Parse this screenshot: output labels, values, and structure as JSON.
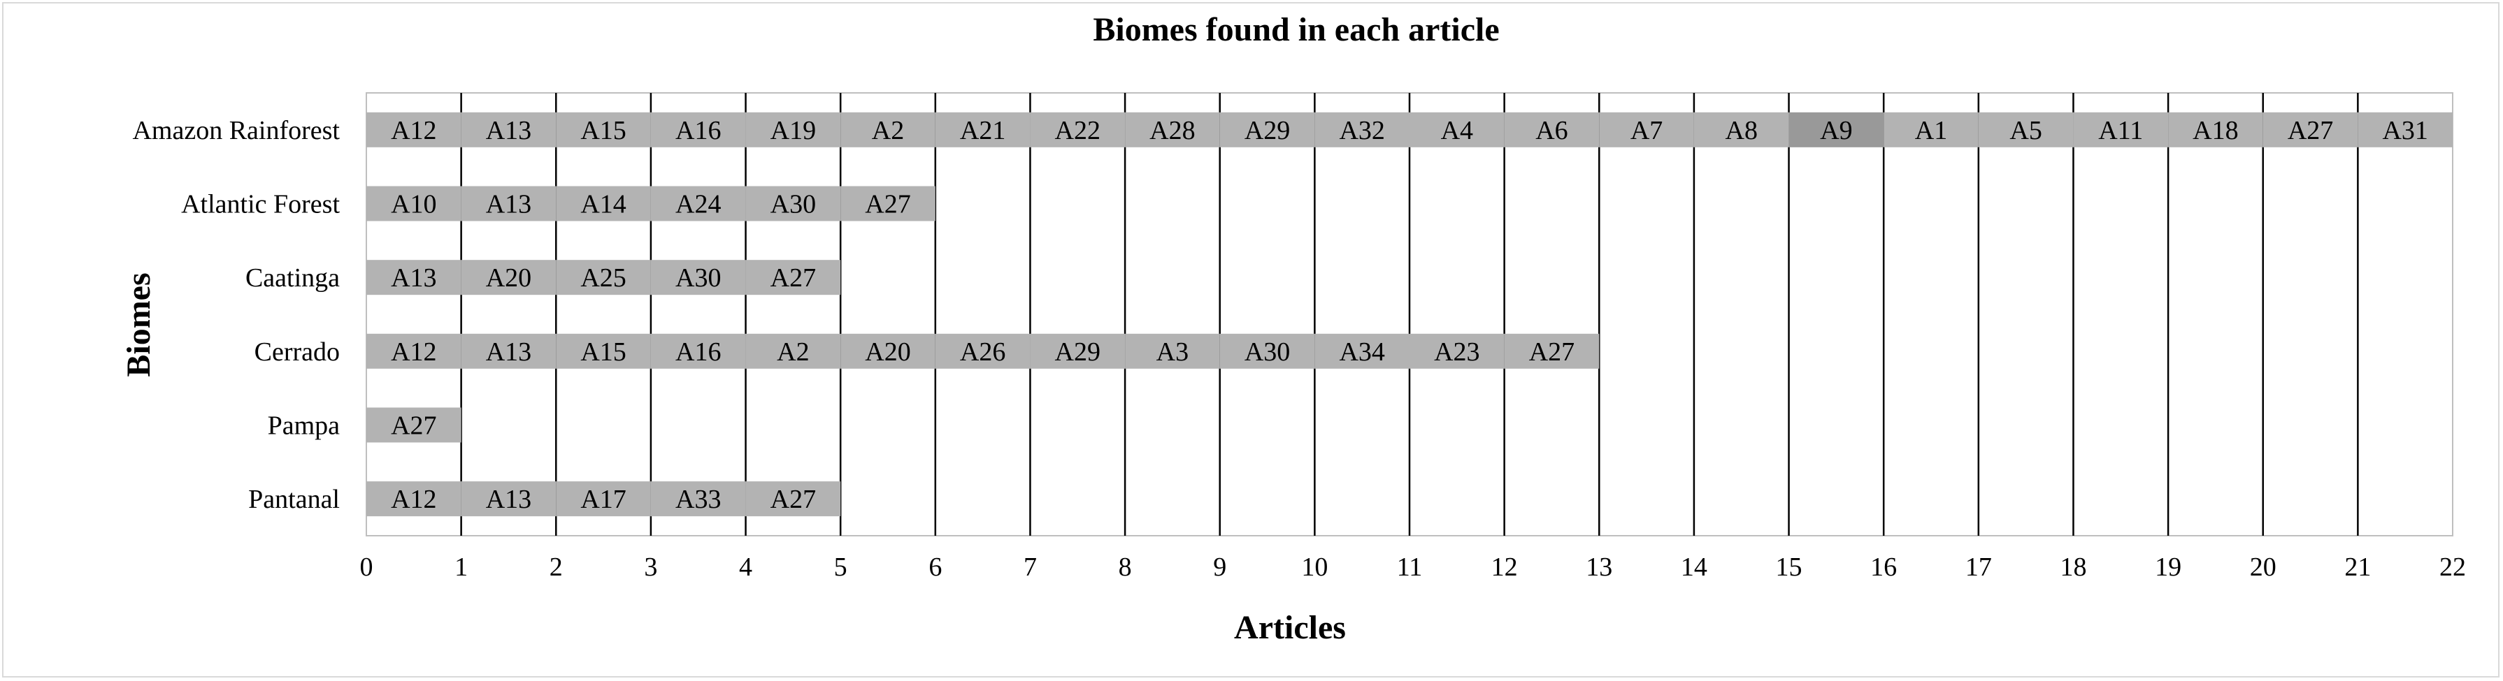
{
  "chart_data": {
    "type": "bar",
    "orientation": "horizontal",
    "stacked": true,
    "title": "Biomes found in each article",
    "xlabel": "Articles",
    "ylabel": "Biomes",
    "xlim": [
      0,
      22
    ],
    "xticks": [
      "0",
      "1",
      "2",
      "3",
      "4",
      "5",
      "6",
      "7",
      "8",
      "9",
      "10",
      "11",
      "12",
      "13",
      "14",
      "15",
      "16",
      "17",
      "18",
      "19",
      "20",
      "21",
      "22"
    ],
    "grid": "vertical",
    "legend": "none",
    "bar_color": "#b3b3b3",
    "highlight_color": "#999999",
    "categories": [
      "Amazon Rainforest",
      "Atlantic Forest",
      "Caatinga",
      "Cerrado",
      "Pampa",
      "Pantanal"
    ],
    "rows": [
      {
        "biome": "Amazon Rainforest",
        "value": 22,
        "articles": [
          "A12",
          "A13",
          "A15",
          "A16",
          "A19",
          "A2",
          "A21",
          "A22",
          "A28",
          "A29",
          "A32",
          "A4",
          "A6",
          "A7",
          "A8",
          "A9",
          "A1",
          "A5",
          "A11",
          "A18",
          "A27",
          "A31"
        ]
      },
      {
        "biome": "Atlantic Forest",
        "value": 6,
        "articles": [
          "A10",
          "A13",
          "A14",
          "A24",
          "A30",
          "A27"
        ]
      },
      {
        "biome": "Caatinga",
        "value": 5,
        "articles": [
          "A13",
          "A20",
          "A25",
          "A30",
          "A27"
        ]
      },
      {
        "biome": "Cerrado",
        "value": 13,
        "articles": [
          "A12",
          "A13",
          "A15",
          "A16",
          "A2",
          "A20",
          "A26",
          "A29",
          "A3",
          "A30",
          "A34",
          "A23",
          "A27"
        ]
      },
      {
        "biome": "Pampa",
        "value": 1,
        "articles": [
          "A27"
        ]
      },
      {
        "biome": "Pantanal",
        "value": 5,
        "articles": [
          "A12",
          "A13",
          "A17",
          "A33",
          "A27"
        ]
      }
    ],
    "highlighted": [
      {
        "biome": "Amazon Rainforest",
        "article": "A9"
      }
    ]
  }
}
